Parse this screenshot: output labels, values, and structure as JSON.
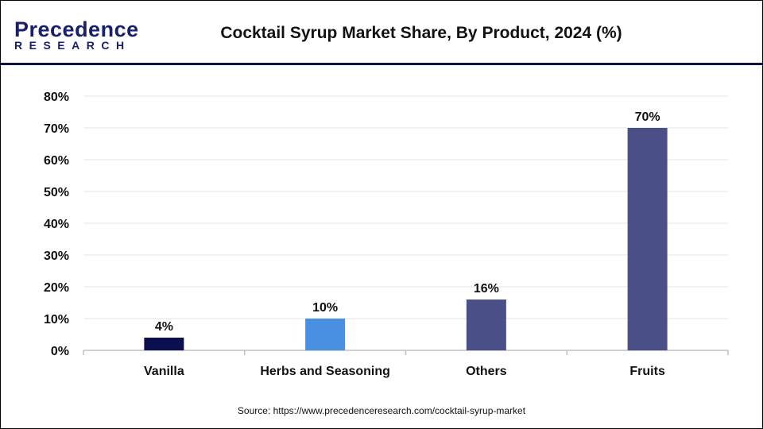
{
  "header": {
    "logo_top": "Precedence",
    "logo_bottom": "RESEARCH",
    "title": "Cocktail Syrup Market Share, By Product, 2024 (%)"
  },
  "source": "Source: https://www.precedenceresearch.com/cocktail-syrup-market",
  "chart_data": {
    "type": "bar",
    "title": "Cocktail Syrup Market Share, By Product, 2024 (%)",
    "categories": [
      "Vanilla",
      "Herbs and Seasoning",
      "Others",
      "Fruits"
    ],
    "values": [
      4,
      10,
      16,
      70
    ],
    "data_labels": [
      "4%",
      "10%",
      "16%",
      "70%"
    ],
    "colors": [
      "#0b0f50",
      "#4a90e2",
      "#4b4f87",
      "#4b4f87"
    ],
    "ylim": [
      0,
      80
    ],
    "yticks": [
      "0%",
      "10%",
      "20%",
      "30%",
      "40%",
      "50%",
      "60%",
      "70%",
      "80%"
    ],
    "xlabel": "",
    "ylabel": "",
    "grid": true
  }
}
